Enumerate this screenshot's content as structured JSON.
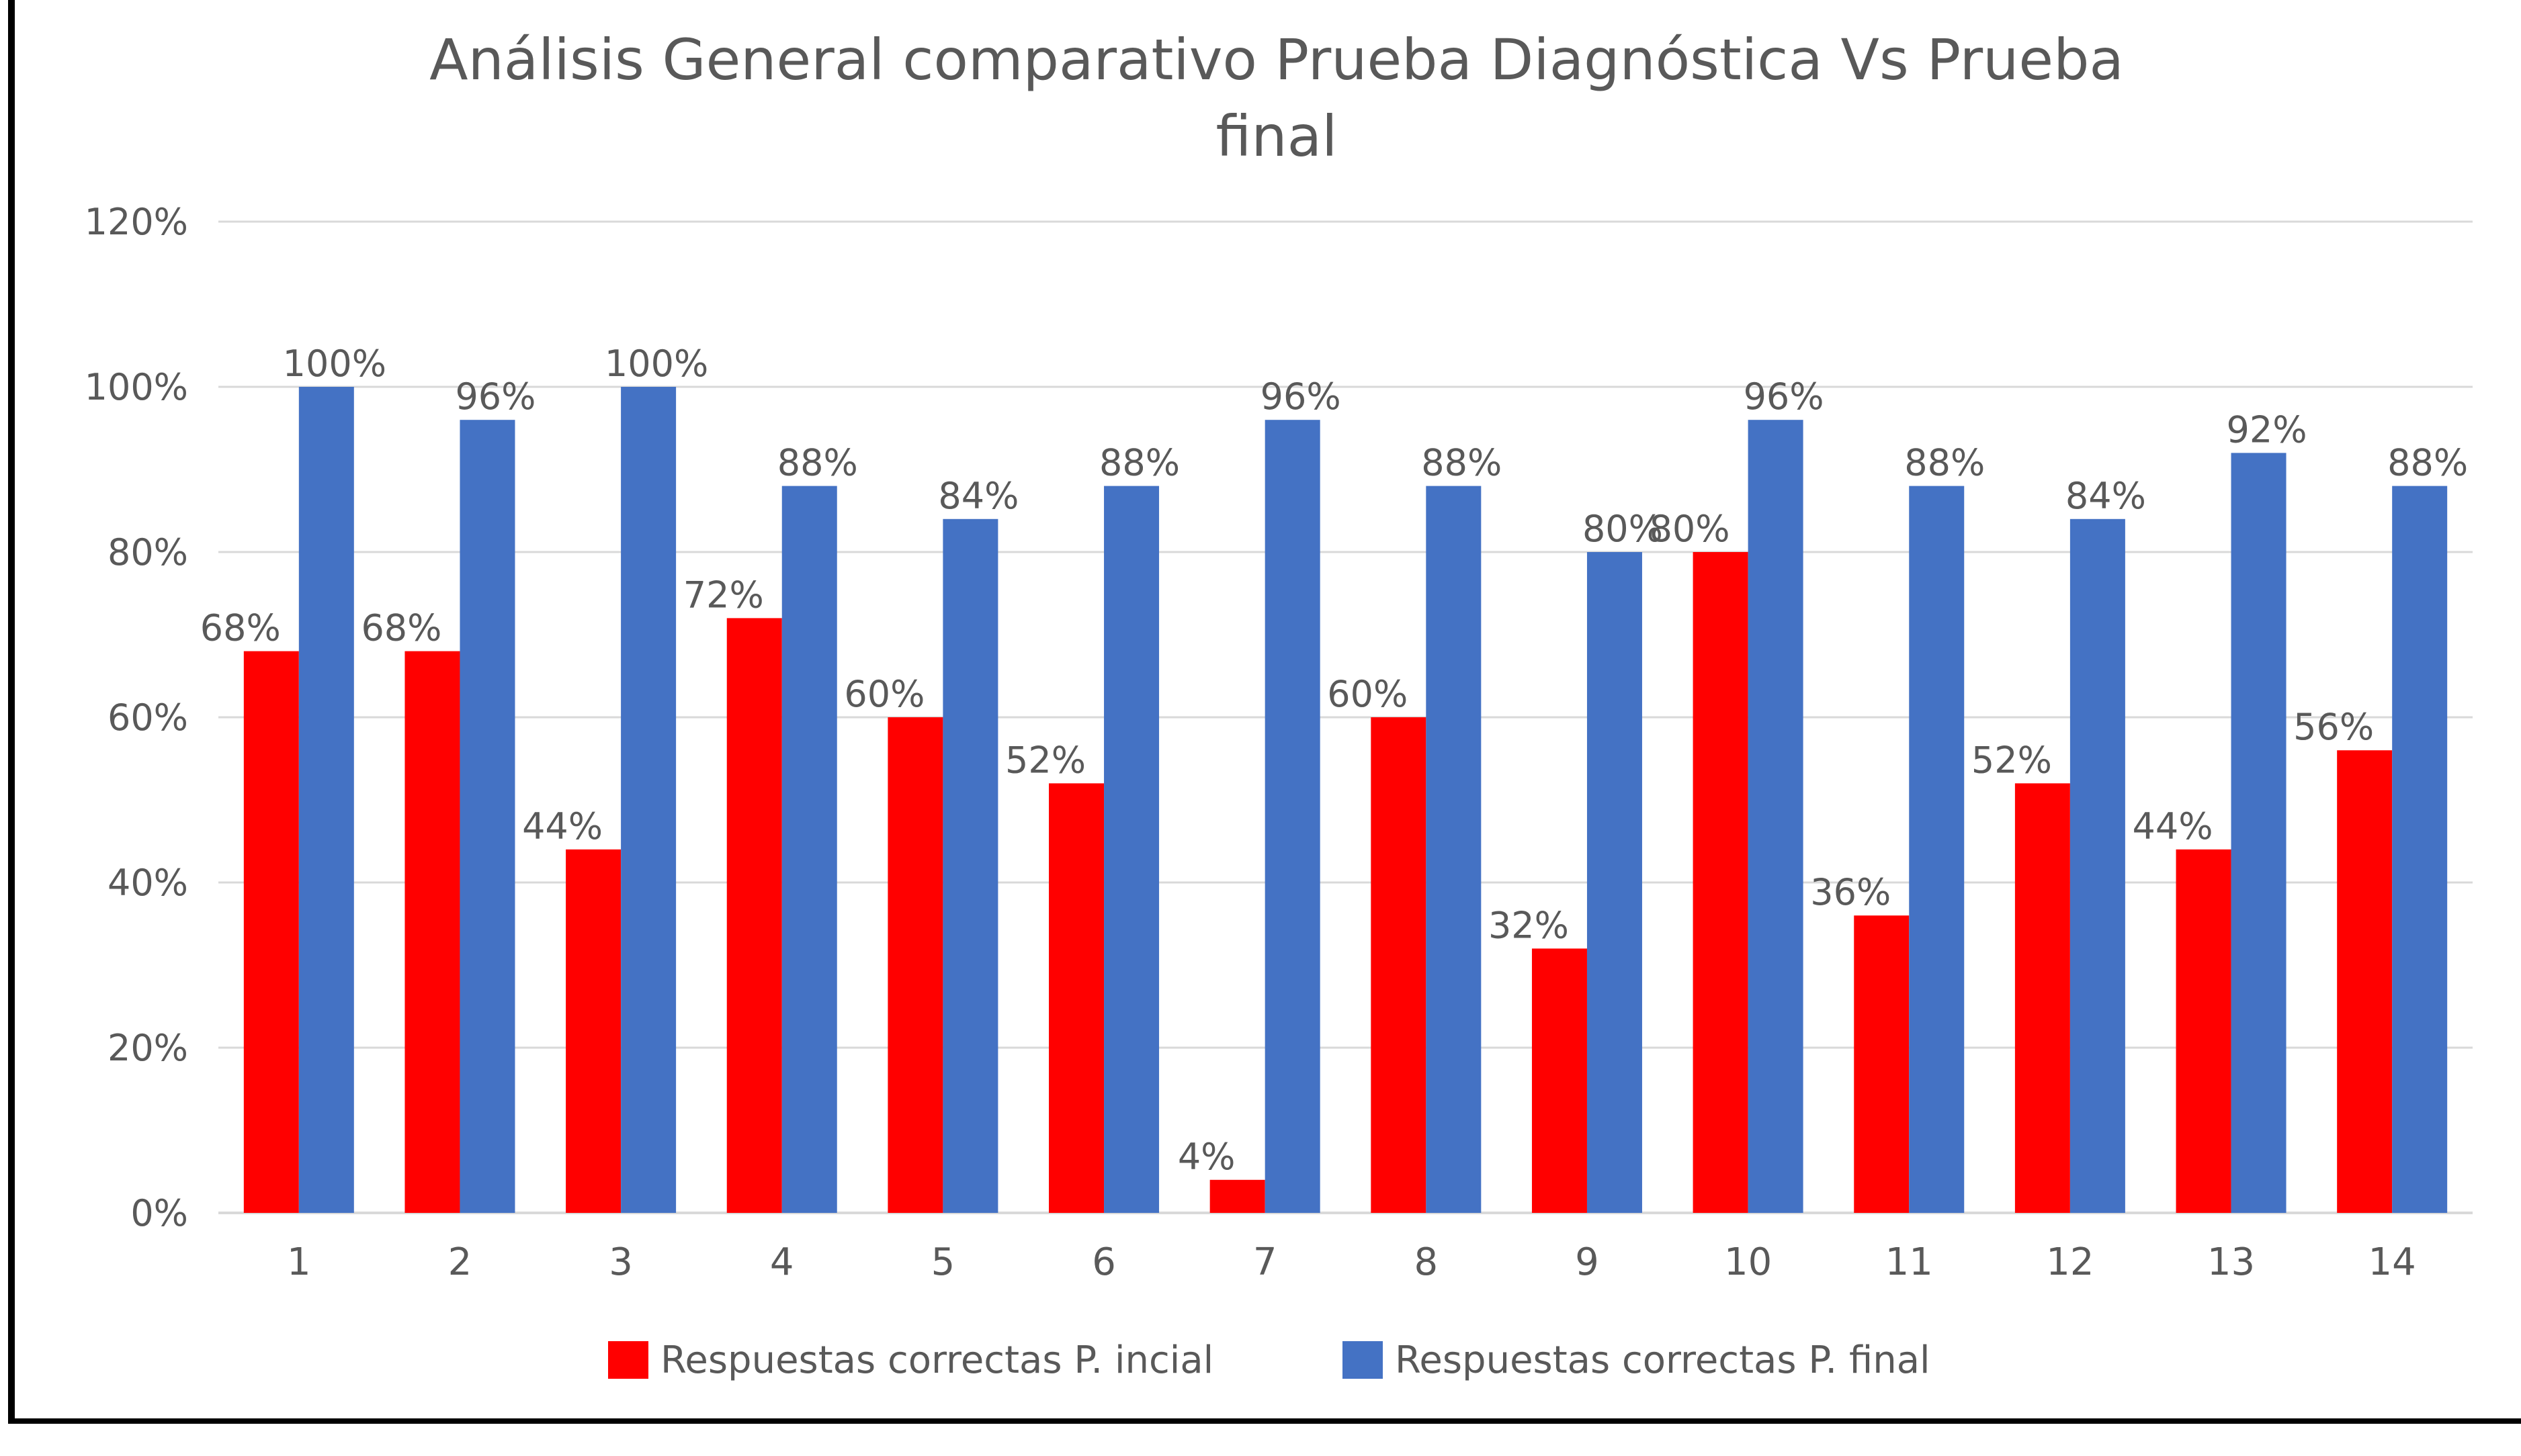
{
  "chart_data": {
    "type": "bar",
    "title_lines": [
      "Análisis General comparativo Prueba Diagnóstica Vs Prueba",
      "final"
    ],
    "categories": [
      "1",
      "2",
      "3",
      "4",
      "5",
      "6",
      "7",
      "8",
      "9",
      "10",
      "11",
      "12",
      "13",
      "14"
    ],
    "series": [
      {
        "name": "Respuestas  correctas P. incial",
        "color": "#ff0000",
        "values": [
          68,
          68,
          44,
          72,
          60,
          52,
          4,
          60,
          32,
          80,
          36,
          52,
          44,
          56
        ],
        "labels": [
          "68%",
          "68%",
          "44%",
          "72%",
          "60%",
          "52%",
          "4%",
          "60%",
          "32%",
          "80%",
          "36%",
          "52%",
          "44%",
          "56%"
        ]
      },
      {
        "name": "Respuestas  correctas P. final",
        "color": "#4472c4",
        "values": [
          100,
          96,
          100,
          88,
          84,
          88,
          96,
          88,
          80,
          96,
          88,
          84,
          92,
          88
        ],
        "labels": [
          "100%",
          "96%",
          "100%",
          "88%",
          "84%",
          "88%",
          "96%",
          "88%",
          "80%",
          "96%",
          "88%",
          "84%",
          "92%",
          "88%"
        ]
      }
    ],
    "ylim": [
      0,
      120
    ],
    "yticks": [
      0,
      20,
      40,
      60,
      80,
      100,
      120
    ],
    "ytick_labels": [
      "0%",
      "20%",
      "40%",
      "60%",
      "80%",
      "100%",
      "120%"
    ],
    "grid": true,
    "legend_position": "bottom"
  }
}
